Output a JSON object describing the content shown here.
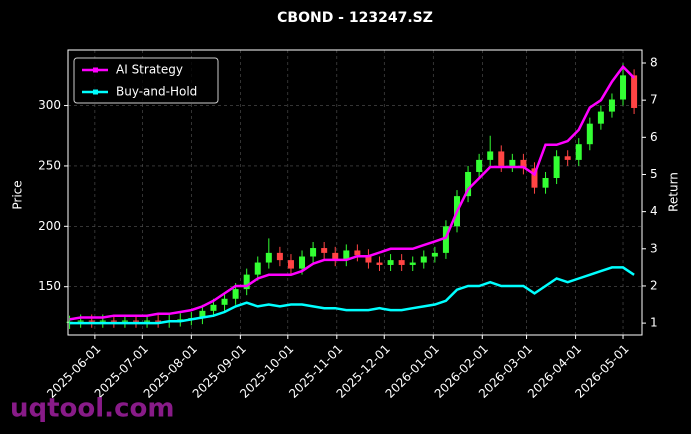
{
  "chart_data": {
    "type": "candlestick",
    "title": "CBOND - 123247.SZ",
    "ylabel": "Price",
    "y2label": "Return",
    "watermark": "uqtool.com",
    "grid": true,
    "legend": "upper left",
    "up_color": "#33ff33",
    "down_color": "#ff4444",
    "x": [
      "2025-05-16",
      "2025-05-23",
      "2025-05-30",
      "2025-06-06",
      "2025-06-13",
      "2025-06-20",
      "2025-06-27",
      "2025-07-04",
      "2025-07-11",
      "2025-07-18",
      "2025-07-25",
      "2025-08-01",
      "2025-08-08",
      "2025-08-15",
      "2025-08-22",
      "2025-08-29",
      "2025-09-05",
      "2025-09-12",
      "2025-09-19",
      "2025-09-26",
      "2025-10-03",
      "2025-10-10",
      "2025-10-17",
      "2025-10-24",
      "2025-10-31",
      "2025-11-07",
      "2025-11-14",
      "2025-11-21",
      "2025-11-28",
      "2025-12-05",
      "2025-12-12",
      "2025-12-19",
      "2025-12-26",
      "2026-01-02",
      "2026-01-09",
      "2026-01-16",
      "2026-01-23",
      "2026-01-30",
      "2026-02-06",
      "2026-02-13",
      "2026-02-20",
      "2026-02-27",
      "2026-03-06",
      "2026-03-13",
      "2026-03-20",
      "2026-03-27",
      "2026-04-03",
      "2026-04-10",
      "2026-04-17",
      "2026-04-24",
      "2026-05-01",
      "2026-05-08"
    ],
    "xlim": [
      "2025-05-15",
      "2026-05-13"
    ],
    "xticks": [
      "2025-06-01",
      "2025-07-01",
      "2025-08-01",
      "2025-09-01",
      "2025-10-01",
      "2025-11-01",
      "2025-12-01",
      "2026-01-01",
      "2026-02-01",
      "2026-03-01",
      "2026-04-01",
      "2026-05-01"
    ],
    "open": [
      120,
      121,
      122,
      121,
      122,
      121,
      122,
      121,
      122,
      121,
      122,
      123,
      124,
      130,
      135,
      140,
      148,
      160,
      170,
      178,
      172,
      165,
      175,
      182,
      178,
      172,
      180,
      176,
      170,
      168,
      172,
      168,
      170,
      175,
      178,
      200,
      225,
      245,
      255,
      262,
      250,
      255,
      248,
      232,
      240,
      258,
      255,
      268,
      285,
      295,
      305,
      325
    ],
    "high": [
      126,
      127,
      127,
      127,
      127,
      127,
      127,
      127,
      127,
      127,
      128,
      129,
      135,
      140,
      145,
      153,
      165,
      175,
      190,
      183,
      177,
      180,
      187,
      187,
      183,
      185,
      185,
      181,
      175,
      177,
      177,
      175,
      180,
      183,
      205,
      230,
      250,
      260,
      275,
      267,
      260,
      260,
      253,
      245,
      263,
      263,
      273,
      290,
      300,
      310,
      335,
      330
    ],
    "low": [
      115,
      116,
      116,
      116,
      116,
      116,
      116,
      116,
      116,
      116,
      117,
      118,
      119,
      125,
      130,
      135,
      143,
      155,
      165,
      167,
      160,
      160,
      170,
      173,
      167,
      167,
      171,
      165,
      163,
      163,
      163,
      163,
      165,
      170,
      173,
      195,
      220,
      240,
      250,
      245,
      245,
      243,
      227,
      227,
      235,
      250,
      250,
      263,
      280,
      290,
      300,
      293
    ],
    "close": [
      121,
      122,
      121,
      122,
      121,
      122,
      121,
      122,
      121,
      122,
      123,
      124,
      130,
      135,
      140,
      148,
      160,
      170,
      178,
      172,
      165,
      175,
      182,
      178,
      172,
      180,
      176,
      170,
      168,
      172,
      168,
      170,
      175,
      178,
      200,
      225,
      245,
      255,
      262,
      250,
      255,
      248,
      232,
      240,
      258,
      255,
      268,
      285,
      295,
      305,
      325,
      298
    ],
    "ylim": [
      110,
      346
    ],
    "yticks": [
      150,
      200,
      250,
      300
    ],
    "y2lim": [
      0.68,
      8.35
    ],
    "y2ticks": [
      1,
      2,
      3,
      4,
      5,
      6,
      7,
      8
    ],
    "series": [
      {
        "name": "AI Strategy",
        "color": "#ff00ff",
        "axis": "y2",
        "values": [
          1.1,
          1.15,
          1.15,
          1.15,
          1.2,
          1.2,
          1.2,
          1.2,
          1.25,
          1.25,
          1.3,
          1.35,
          1.45,
          1.6,
          1.8,
          2.0,
          2.0,
          2.2,
          2.3,
          2.3,
          2.3,
          2.4,
          2.6,
          2.7,
          2.7,
          2.7,
          2.8,
          2.8,
          2.9,
          3.0,
          3.0,
          3.0,
          3.1,
          3.2,
          3.3,
          4.0,
          4.6,
          4.9,
          5.2,
          5.2,
          5.2,
          5.2,
          5.0,
          5.8,
          5.8,
          5.9,
          6.2,
          6.8,
          7.0,
          7.5,
          7.9,
          7.6
        ]
      },
      {
        "name": "Buy-and-Hold",
        "color": "#00ffff",
        "axis": "y2",
        "values": [
          1.0,
          1.0,
          1.0,
          1.0,
          1.0,
          1.0,
          1.0,
          1.0,
          1.0,
          1.05,
          1.05,
          1.1,
          1.15,
          1.2,
          1.3,
          1.45,
          1.55,
          1.45,
          1.5,
          1.45,
          1.5,
          1.5,
          1.45,
          1.4,
          1.4,
          1.35,
          1.35,
          1.35,
          1.4,
          1.35,
          1.35,
          1.4,
          1.45,
          1.5,
          1.6,
          1.9,
          2.0,
          2.0,
          2.1,
          2.0,
          2.0,
          2.0,
          1.8,
          2.0,
          2.2,
          2.1,
          2.2,
          2.3,
          2.4,
          2.5,
          2.5,
          2.3
        ]
      }
    ]
  }
}
